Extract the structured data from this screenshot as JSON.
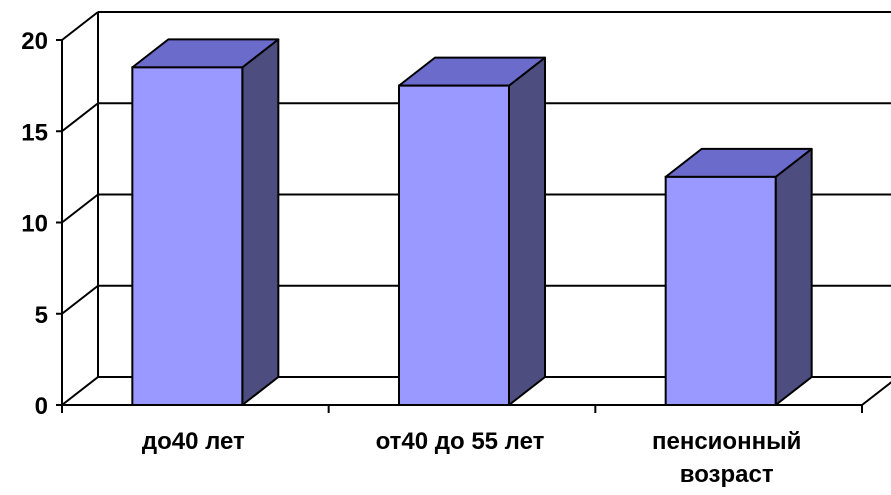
{
  "chart_data": {
    "type": "bar",
    "style": "3d-column",
    "categories": [
      "до40 лет",
      "от40 до 55 лет",
      "пенсионный возраст"
    ],
    "category_lines": [
      [
        "до40 лет"
      ],
      [
        "от40 до 55 лет"
      ],
      [
        "пенсионный",
        "возраст"
      ]
    ],
    "values": [
      18.5,
      17.5,
      12.5
    ],
    "yticks": [
      "0",
      "5",
      "10",
      "15",
      "20"
    ],
    "ylim": [
      0,
      20
    ],
    "grid": true,
    "legend": "none",
    "colors": {
      "bar_front": "#9999ff",
      "bar_top": "#6b6bcc",
      "bar_side": "#4d4d80",
      "grid": "#000000",
      "axis": "#000000"
    }
  }
}
